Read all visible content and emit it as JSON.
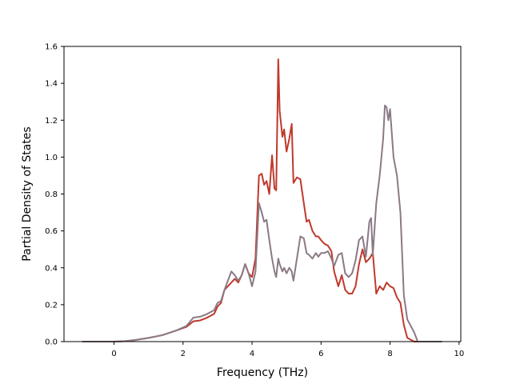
{
  "chart_data": {
    "type": "line",
    "title": "",
    "xlabel": "Frequency (THz)",
    "ylabel": "Partial Density of States",
    "xlim": [
      -1.45,
      10.05
    ],
    "ylim": [
      0.0,
      1.6
    ],
    "x_ticks": [
      0,
      2,
      4,
      6,
      8,
      10
    ],
    "y_ticks": [
      0.0,
      0.2,
      0.4,
      0.6,
      0.8,
      1.0,
      1.2,
      1.4,
      1.6
    ],
    "x_tick_labels": [
      "0",
      "2",
      "4",
      "6",
      "8",
      "10"
    ],
    "y_tick_labels": [
      "0.0",
      "0.2",
      "0.4",
      "0.6",
      "0.8",
      "1.0",
      "1.2",
      "1.4",
      "1.6"
    ],
    "grid": false,
    "legend": "none",
    "series": [
      {
        "color": "#c0392b",
        "points": [
          [
            -0.92,
            0.0
          ],
          [
            0.0,
            0.0
          ],
          [
            0.3,
            0.002
          ],
          [
            0.6,
            0.008
          ],
          [
            1.0,
            0.02
          ],
          [
            1.4,
            0.035
          ],
          [
            1.8,
            0.06
          ],
          [
            2.1,
            0.08
          ],
          [
            2.3,
            0.11
          ],
          [
            2.5,
            0.115
          ],
          [
            2.7,
            0.13
          ],
          [
            2.9,
            0.15
          ],
          [
            3.0,
            0.19
          ],
          [
            3.1,
            0.21
          ],
          [
            3.2,
            0.28
          ],
          [
            3.3,
            0.3
          ],
          [
            3.4,
            0.32
          ],
          [
            3.5,
            0.34
          ],
          [
            3.6,
            0.32
          ],
          [
            3.7,
            0.36
          ],
          [
            3.8,
            0.42
          ],
          [
            3.9,
            0.37
          ],
          [
            4.0,
            0.35
          ],
          [
            4.1,
            0.45
          ],
          [
            4.2,
            0.9
          ],
          [
            4.28,
            0.91
          ],
          [
            4.35,
            0.85
          ],
          [
            4.42,
            0.87
          ],
          [
            4.5,
            0.8
          ],
          [
            4.58,
            1.01
          ],
          [
            4.65,
            0.83
          ],
          [
            4.7,
            0.82
          ],
          [
            4.76,
            1.53
          ],
          [
            4.8,
            1.25
          ],
          [
            4.88,
            1.11
          ],
          [
            4.93,
            1.15
          ],
          [
            5.0,
            1.03
          ],
          [
            5.08,
            1.1
          ],
          [
            5.15,
            1.18
          ],
          [
            5.2,
            0.86
          ],
          [
            5.3,
            0.89
          ],
          [
            5.4,
            0.88
          ],
          [
            5.5,
            0.75
          ],
          [
            5.58,
            0.65
          ],
          [
            5.65,
            0.66
          ],
          [
            5.75,
            0.6
          ],
          [
            5.85,
            0.57
          ],
          [
            5.92,
            0.57
          ],
          [
            6.0,
            0.55
          ],
          [
            6.1,
            0.53
          ],
          [
            6.2,
            0.52
          ],
          [
            6.3,
            0.49
          ],
          [
            6.38,
            0.38
          ],
          [
            6.5,
            0.3
          ],
          [
            6.6,
            0.36
          ],
          [
            6.7,
            0.28
          ],
          [
            6.8,
            0.26
          ],
          [
            6.9,
            0.26
          ],
          [
            7.0,
            0.3
          ],
          [
            7.1,
            0.42
          ],
          [
            7.2,
            0.5
          ],
          [
            7.3,
            0.43
          ],
          [
            7.4,
            0.45
          ],
          [
            7.5,
            0.48
          ],
          [
            7.6,
            0.26
          ],
          [
            7.7,
            0.3
          ],
          [
            7.8,
            0.28
          ],
          [
            7.9,
            0.32
          ],
          [
            8.0,
            0.3
          ],
          [
            8.1,
            0.29
          ],
          [
            8.2,
            0.24
          ],
          [
            8.3,
            0.21
          ],
          [
            8.4,
            0.09
          ],
          [
            8.5,
            0.02
          ],
          [
            8.7,
            0.0
          ],
          [
            9.5,
            0.0
          ]
        ]
      },
      {
        "color": "#8a7a86",
        "points": [
          [
            -0.92,
            0.0
          ],
          [
            0.0,
            0.0
          ],
          [
            0.3,
            0.002
          ],
          [
            0.6,
            0.008
          ],
          [
            1.0,
            0.02
          ],
          [
            1.4,
            0.035
          ],
          [
            1.8,
            0.06
          ],
          [
            2.1,
            0.085
          ],
          [
            2.3,
            0.13
          ],
          [
            2.5,
            0.135
          ],
          [
            2.7,
            0.15
          ],
          [
            2.9,
            0.17
          ],
          [
            3.0,
            0.21
          ],
          [
            3.1,
            0.22
          ],
          [
            3.2,
            0.28
          ],
          [
            3.3,
            0.33
          ],
          [
            3.4,
            0.38
          ],
          [
            3.5,
            0.36
          ],
          [
            3.6,
            0.33
          ],
          [
            3.7,
            0.36
          ],
          [
            3.8,
            0.42
          ],
          [
            3.9,
            0.37
          ],
          [
            4.0,
            0.3
          ],
          [
            4.1,
            0.38
          ],
          [
            4.2,
            0.75
          ],
          [
            4.28,
            0.7
          ],
          [
            4.35,
            0.65
          ],
          [
            4.42,
            0.66
          ],
          [
            4.5,
            0.55
          ],
          [
            4.58,
            0.45
          ],
          [
            4.65,
            0.38
          ],
          [
            4.7,
            0.35
          ],
          [
            4.76,
            0.45
          ],
          [
            4.8,
            0.42
          ],
          [
            4.88,
            0.38
          ],
          [
            4.93,
            0.4
          ],
          [
            5.0,
            0.37
          ],
          [
            5.08,
            0.4
          ],
          [
            5.15,
            0.38
          ],
          [
            5.2,
            0.33
          ],
          [
            5.3,
            0.45
          ],
          [
            5.4,
            0.57
          ],
          [
            5.5,
            0.56
          ],
          [
            5.58,
            0.48
          ],
          [
            5.65,
            0.47
          ],
          [
            5.75,
            0.45
          ],
          [
            5.85,
            0.48
          ],
          [
            5.92,
            0.46
          ],
          [
            6.0,
            0.48
          ],
          [
            6.1,
            0.48
          ],
          [
            6.2,
            0.49
          ],
          [
            6.3,
            0.45
          ],
          [
            6.38,
            0.41
          ],
          [
            6.5,
            0.47
          ],
          [
            6.6,
            0.48
          ],
          [
            6.7,
            0.37
          ],
          [
            6.8,
            0.35
          ],
          [
            6.9,
            0.37
          ],
          [
            7.0,
            0.44
          ],
          [
            7.1,
            0.55
          ],
          [
            7.2,
            0.57
          ],
          [
            7.3,
            0.46
          ],
          [
            7.4,
            0.65
          ],
          [
            7.45,
            0.67
          ],
          [
            7.5,
            0.47
          ],
          [
            7.6,
            0.75
          ],
          [
            7.7,
            0.9
          ],
          [
            7.8,
            1.1
          ],
          [
            7.85,
            1.28
          ],
          [
            7.9,
            1.27
          ],
          [
            7.95,
            1.2
          ],
          [
            8.0,
            1.26
          ],
          [
            8.1,
            1.0
          ],
          [
            8.2,
            0.9
          ],
          [
            8.3,
            0.7
          ],
          [
            8.4,
            0.25
          ],
          [
            8.5,
            0.12
          ],
          [
            8.7,
            0.05
          ],
          [
            8.8,
            0.0
          ],
          [
            9.5,
            0.0
          ]
        ]
      }
    ]
  }
}
